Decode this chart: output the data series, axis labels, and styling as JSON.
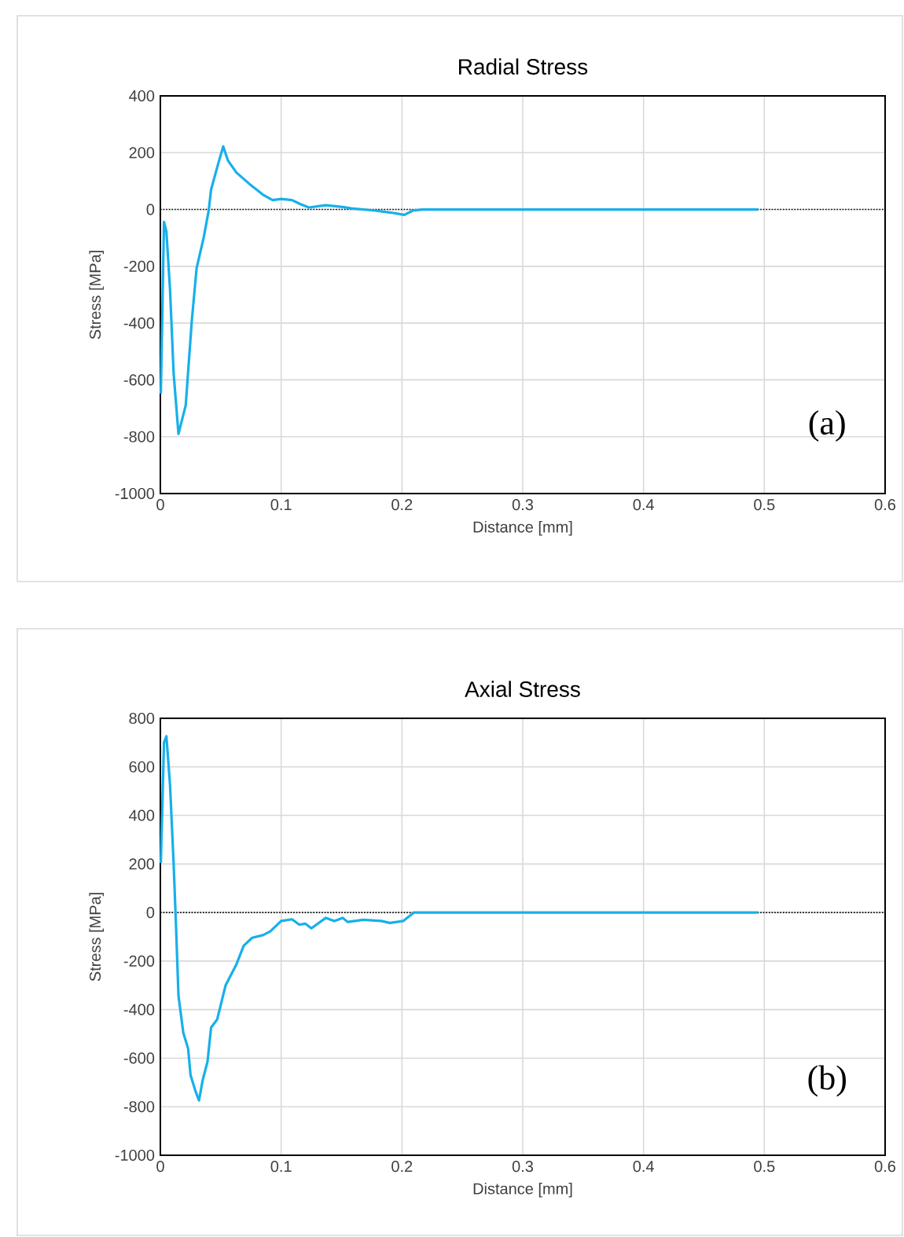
{
  "chart_data": [
    {
      "type": "line",
      "title": "Radial Stress",
      "xlabel": "Distance [mm]",
      "ylabel": "Stress [MPa]",
      "x": [
        0.0004,
        0.003,
        0.005,
        0.008,
        0.011,
        0.015,
        0.021,
        0.026,
        0.03,
        0.036,
        0.04,
        0.042,
        0.048,
        0.052,
        0.056,
        0.063,
        0.074,
        0.085,
        0.093,
        0.1,
        0.109,
        0.116,
        0.123,
        0.137,
        0.151,
        0.158,
        0.178,
        0.191,
        0.202,
        0.209,
        0.217,
        0.3,
        0.4,
        0.495
      ],
      "series": [
        {
          "color": "#17b0ea",
          "values": [
            -648,
            -44,
            -78,
            -281,
            -578,
            -790,
            -689,
            -393,
            -207,
            -96,
            -4,
            70,
            163,
            222,
            172,
            130,
            89,
            52,
            33,
            37,
            33,
            19,
            7,
            15,
            9,
            4,
            -4,
            -11,
            -19,
            -4,
            0,
            0,
            0,
            0
          ]
        }
      ],
      "xlim": [
        0,
        0.6
      ],
      "ylim": [
        -1000,
        400
      ],
      "xticks": [
        0,
        0.1,
        0.2,
        0.3,
        0.4,
        0.5,
        0.6
      ],
      "yticks": [
        -1000,
        -800,
        -600,
        -400,
        -200,
        0,
        200,
        400
      ],
      "grid": true,
      "line_style": "solid",
      "ref_lines": [
        {
          "axis": "y",
          "value": 0,
          "color": "#000000",
          "line_style": "dotted"
        }
      ],
      "annotations": [
        "(a)"
      ]
    },
    {
      "type": "line",
      "title": "Axial Stress",
      "xlabel": "Distance [mm]",
      "ylabel": "Stress [MPa]",
      "x": [
        0.0004,
        0.003,
        0.005,
        0.008,
        0.011,
        0.013,
        0.015,
        0.019,
        0.023,
        0.025,
        0.029,
        0.032,
        0.035,
        0.039,
        0.042,
        0.047,
        0.054,
        0.063,
        0.069,
        0.076,
        0.085,
        0.091,
        0.1,
        0.109,
        0.115,
        0.12,
        0.125,
        0.137,
        0.144,
        0.151,
        0.155,
        0.168,
        0.183,
        0.19,
        0.201,
        0.21,
        0.3,
        0.4,
        0.495
      ],
      "series": [
        {
          "color": "#17b0ea",
          "values": [
            204,
            700,
            726,
            526,
            200,
            -61,
            -343,
            -496,
            -561,
            -670,
            -735,
            -774,
            -691,
            -615,
            -474,
            -441,
            -300,
            -213,
            -137,
            -104,
            -93,
            -78,
            -35,
            -28,
            -50,
            -46,
            -65,
            -22,
            -35,
            -22,
            -39,
            -30,
            -35,
            -43,
            -35,
            0,
            0,
            0,
            0
          ]
        }
      ],
      "xlim": [
        0,
        0.6
      ],
      "ylim": [
        -1000,
        800
      ],
      "xticks": [
        0,
        0.1,
        0.2,
        0.3,
        0.4,
        0.5,
        0.6
      ],
      "yticks": [
        -1000,
        -800,
        -600,
        -400,
        -200,
        0,
        200,
        400,
        600,
        800
      ],
      "grid": true,
      "line_style": "solid",
      "ref_lines": [
        {
          "axis": "y",
          "value": 0,
          "color": "#000000",
          "line_style": "dotted"
        }
      ],
      "annotations": [
        "(b)"
      ]
    }
  ]
}
